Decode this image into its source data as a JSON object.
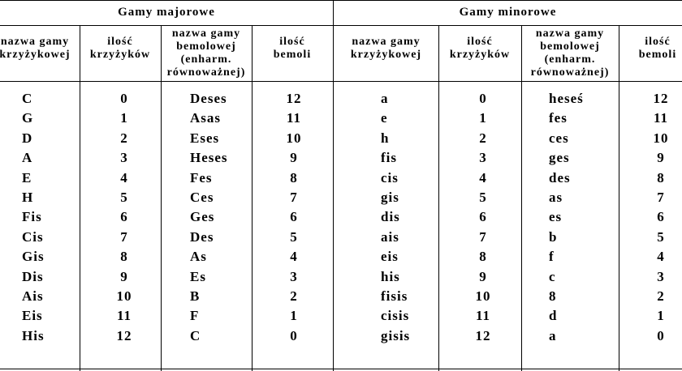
{
  "table": {
    "group_headers": {
      "major": "Gamy majorowe",
      "minor": "Gamy minorowe"
    },
    "column_headers": {
      "sharp_name": "nazwa gamy\nkrzyżykowej",
      "sharp_count": "ilość\nkrzyżyków",
      "flat_name": "nazwa gamy\nbemolowej\n(enharm.\nrównoważnej)",
      "flat_count": "ilość\nbemoli"
    },
    "major": {
      "sharp_names": [
        "C",
        "G",
        "D",
        "A",
        "E",
        "H",
        "Fis",
        "Cis",
        "Gis",
        "Dis",
        "Ais",
        "Eis",
        "His"
      ],
      "sharp_counts": [
        "0",
        "1",
        "2",
        "3",
        "4",
        "5",
        "6",
        "7",
        "8",
        "9",
        "10",
        "11",
        "12"
      ],
      "flat_names": [
        "Deses",
        "Asas",
        "Eses",
        "Heses",
        "Fes",
        "Ces",
        "Ges",
        "Des",
        "As",
        "Es",
        "B",
        "F",
        "C"
      ],
      "flat_counts": [
        "12",
        "11",
        "10",
        "9",
        "8",
        "7",
        "6",
        "5",
        "4",
        "3",
        "2",
        "1",
        "0"
      ]
    },
    "minor": {
      "sharp_names": [
        "a",
        "e",
        "h",
        "fis",
        "cis",
        "gis",
        "dis",
        "ais",
        "eis",
        "his",
        "fisis",
        "cisis",
        "gisis"
      ],
      "sharp_counts": [
        "0",
        "1",
        "2",
        "3",
        "4",
        "5",
        "6",
        "7",
        "8",
        "9",
        "10",
        "11",
        "12"
      ],
      "flat_names": [
        "heseś",
        "fes",
        "ces",
        "ges",
        "des",
        "as",
        "es",
        "b",
        "f",
        "c",
        "8",
        "d",
        "a"
      ],
      "flat_counts": [
        "12",
        "11",
        "10",
        "9",
        "8",
        "7",
        "6",
        "5",
        "4",
        "3",
        "2",
        "1",
        "0"
      ]
    }
  }
}
